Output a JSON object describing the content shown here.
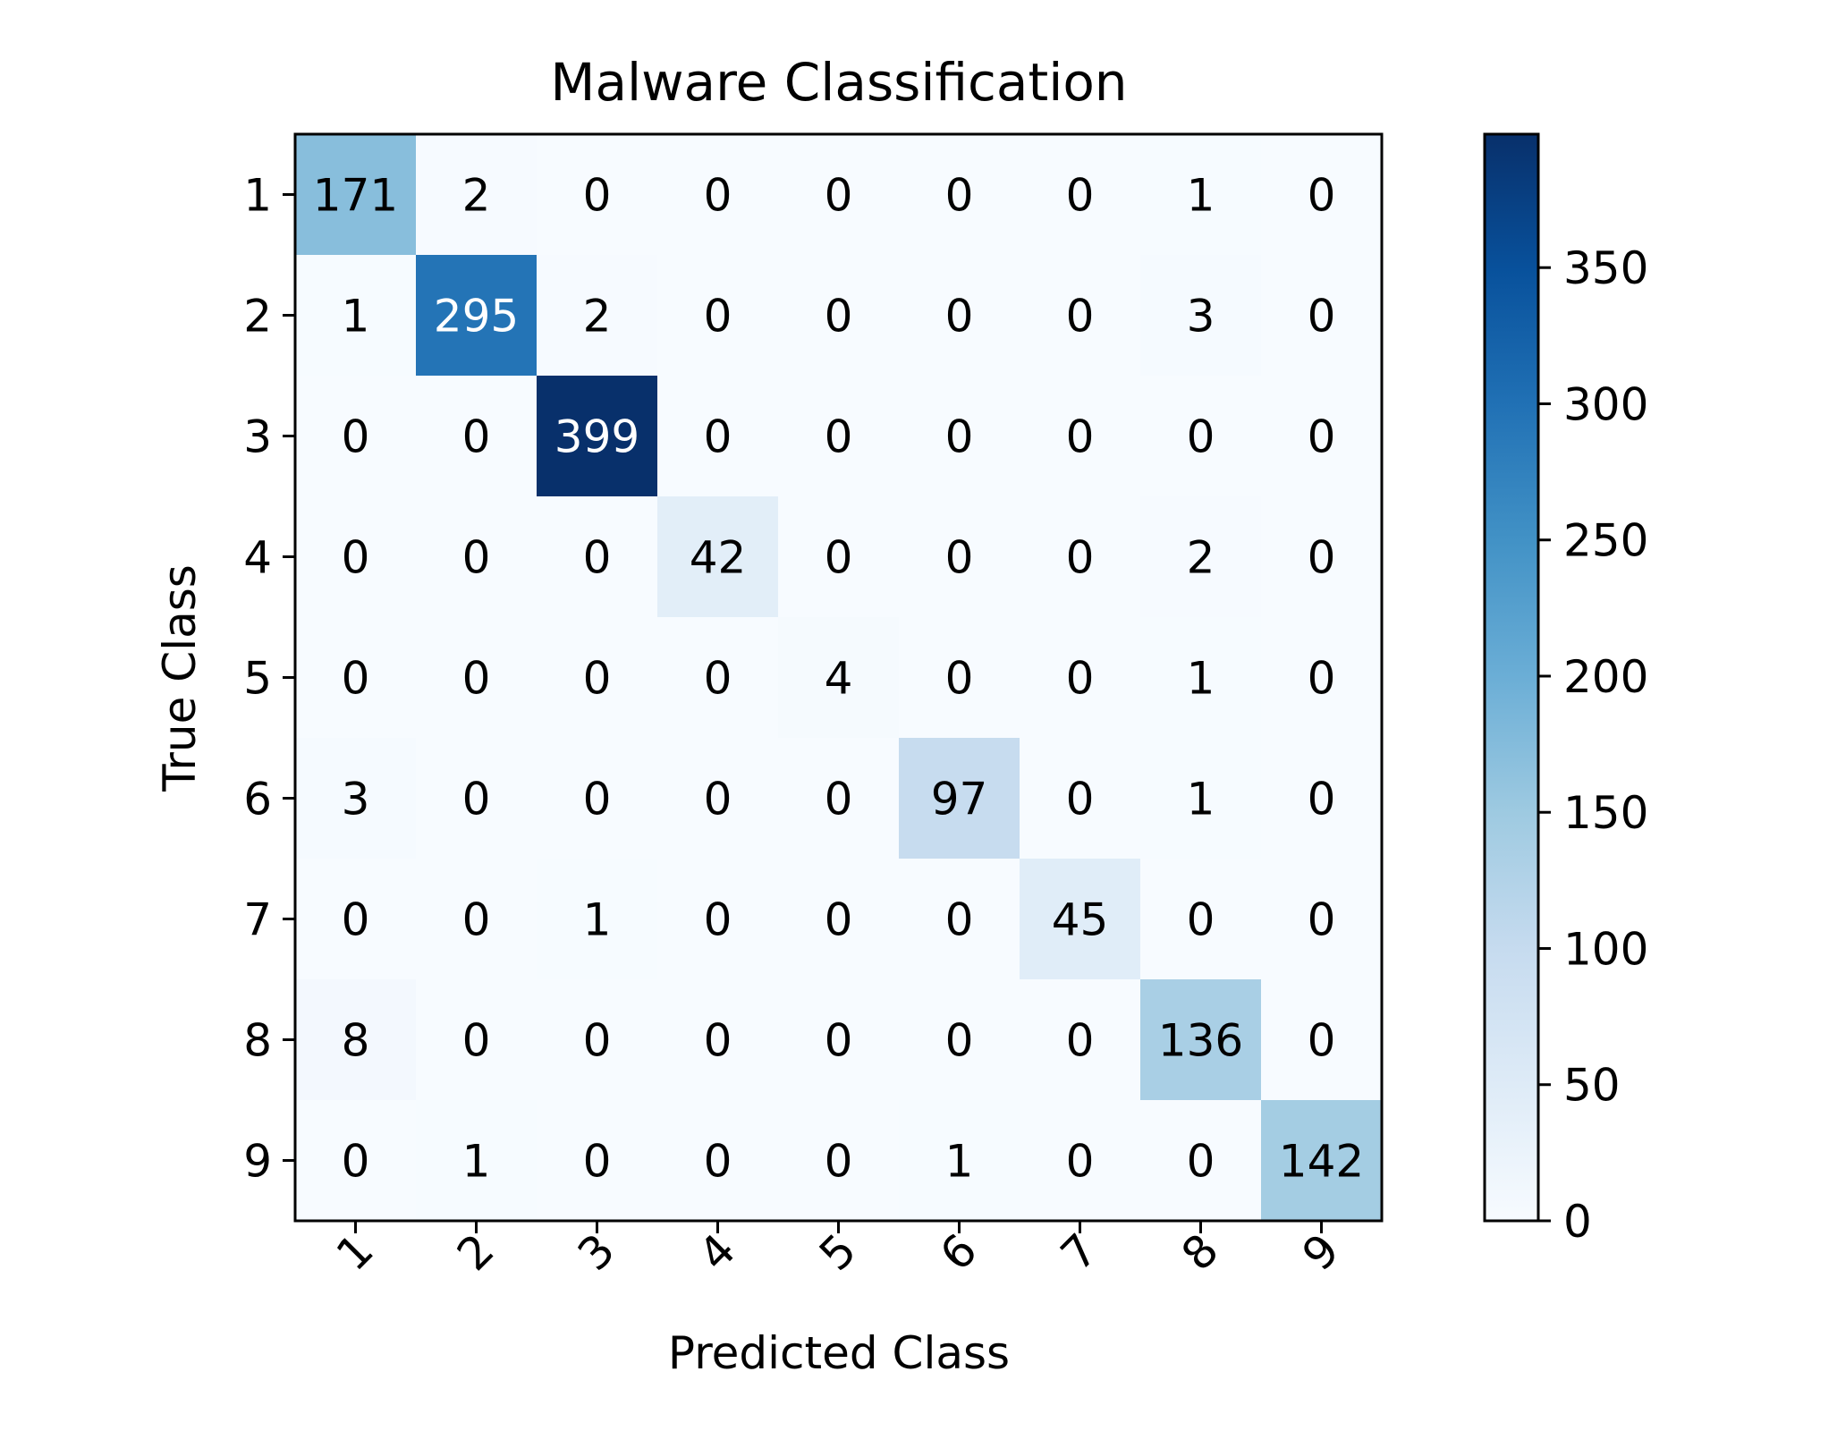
{
  "chart_data": {
    "type": "heatmap",
    "title": "Malware Classification",
    "xlabel": "Predicted Class",
    "ylabel": "True Class",
    "x_categories": [
      "1",
      "2",
      "3",
      "4",
      "5",
      "6",
      "7",
      "8",
      "9"
    ],
    "y_categories": [
      "1",
      "2",
      "3",
      "4",
      "5",
      "6",
      "7",
      "8",
      "9"
    ],
    "values": [
      [
        171,
        2,
        0,
        0,
        0,
        0,
        0,
        1,
        0
      ],
      [
        1,
        295,
        2,
        0,
        0,
        0,
        0,
        3,
        0
      ],
      [
        0,
        0,
        399,
        0,
        0,
        0,
        0,
        0,
        0
      ],
      [
        0,
        0,
        0,
        42,
        0,
        0,
        0,
        2,
        0
      ],
      [
        0,
        0,
        0,
        0,
        4,
        0,
        0,
        1,
        0
      ],
      [
        3,
        0,
        0,
        0,
        0,
        97,
        0,
        1,
        0
      ],
      [
        0,
        0,
        1,
        0,
        0,
        0,
        45,
        0,
        0
      ],
      [
        8,
        0,
        0,
        0,
        0,
        0,
        0,
        136,
        0
      ],
      [
        0,
        1,
        0,
        0,
        0,
        1,
        0,
        0,
        142
      ]
    ],
    "colormap": "Blues",
    "value_range": [
      0,
      399
    ],
    "colorbar": {
      "ticks": [
        0,
        50,
        100,
        150,
        200,
        250,
        300,
        350
      ],
      "tick_labels": [
        "0",
        "50",
        "100",
        "150",
        "200",
        "250",
        "300",
        "350"
      ]
    },
    "x_tick_rotation_deg": 45
  },
  "colors": {
    "text_dark": "#000000",
    "text_light": "#ffffff",
    "frame": "#000000"
  }
}
